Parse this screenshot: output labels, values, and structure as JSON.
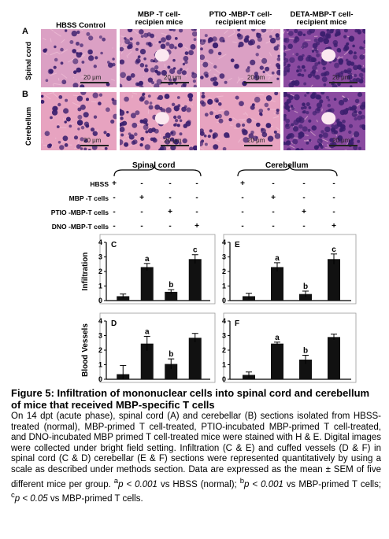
{
  "figure": {
    "column_headers": [
      "HBSS Control",
      "MBP -T cell-\nrecipien mice",
      "PTIO -MBP-T cell-\nrecipient mice",
      "DETA-MBP-T cell-\nrecipient mice"
    ],
    "rows": [
      {
        "letter": "A",
        "label": "Spinal cord"
      },
      {
        "letter": "B",
        "label": "Cerebellum"
      }
    ],
    "scale_labels": [
      "20 μm",
      "20 μm",
      "20 μm",
      "20 μm",
      "20 μm",
      "20 μm",
      "20 μm",
      "20 μm"
    ],
    "colors": {
      "tissue_light": "#e9a6c2",
      "tissue_dark": "#7a3f97",
      "nucleus": "#3b1f6e",
      "bar": "#111111"
    }
  },
  "treatment_table": {
    "group_labels": [
      "Spinal cord",
      "Cerebellum"
    ],
    "rows": [
      {
        "label": "HBSS",
        "signs": [
          "+",
          "-",
          "-",
          "-",
          "+",
          "-",
          "-",
          "-"
        ]
      },
      {
        "label": "MBP -T cells",
        "signs": [
          "-",
          "+",
          "-",
          "-",
          "-",
          "+",
          "-",
          "-"
        ]
      },
      {
        "label": "PTIO -MBP-T cells",
        "signs": [
          "-",
          "-",
          "+",
          "-",
          "-",
          "-",
          "+",
          "-"
        ]
      },
      {
        "label": "DNO -MBP-T cells",
        "signs": [
          "-",
          "-",
          "-",
          "+",
          "-",
          "-",
          "-",
          "+"
        ]
      }
    ]
  },
  "chart_data": [
    {
      "panel": "C",
      "type": "bar",
      "ylabel": "Infiltration",
      "ylim": [
        0,
        4
      ],
      "yticks": [
        0,
        1,
        2,
        3,
        4
      ],
      "categories": [
        "HBSS",
        "MBP -T cells",
        "PTIO -MBP-T cells",
        "DNO -MBP-T cells"
      ],
      "values": [
        0.3,
        2.3,
        0.6,
        2.85
      ],
      "errors": [
        0.15,
        0.25,
        0.15,
        0.3
      ],
      "annotations": [
        "",
        "a",
        "b",
        "c"
      ]
    },
    {
      "panel": "E",
      "type": "bar",
      "ylabel": "",
      "ylim": [
        0,
        4
      ],
      "yticks": [
        0,
        1,
        2,
        3,
        4
      ],
      "categories": [
        "HBSS",
        "MBP -T cells",
        "PTIO -MBP-T cells",
        "DNO -MBP-T cells"
      ],
      "values": [
        0.3,
        2.3,
        0.45,
        2.85
      ],
      "errors": [
        0.2,
        0.3,
        0.2,
        0.35
      ],
      "annotations": [
        "",
        "a",
        "b",
        "c"
      ]
    },
    {
      "panel": "D",
      "type": "bar",
      "ylabel": "Blood Vessels",
      "ylim": [
        0,
        4
      ],
      "yticks": [
        0,
        1,
        2,
        3,
        4
      ],
      "categories": [
        "HBSS",
        "MBP -T cells",
        "PTIO -MBP-T cells",
        "DNO -MBP-T cells"
      ],
      "values": [
        0.35,
        2.45,
        1.05,
        2.85
      ],
      "errors": [
        0.6,
        0.5,
        0.35,
        0.3
      ],
      "annotations": [
        "",
        "a",
        "b",
        ""
      ]
    },
    {
      "panel": "F",
      "type": "bar",
      "ylabel": "",
      "ylim": [
        0,
        4
      ],
      "yticks": [
        0,
        1,
        2,
        3,
        4
      ],
      "categories": [
        "HBSS",
        "MBP -T cells",
        "PTIO -MBP-T cells",
        "DNO -MBP-T cells"
      ],
      "values": [
        0.3,
        2.45,
        1.35,
        2.9
      ],
      "errors": [
        0.2,
        0.1,
        0.3,
        0.2
      ],
      "annotations": [
        "",
        "a",
        "b",
        ""
      ]
    }
  ],
  "caption": {
    "title": "Figure 5: Infiltration of mononuclear cells into spinal cord and cerebellum of mice that received MBP-specific T cells",
    "body_html": "On 14 dpt (acute phase), spinal cord (A) and cerebellar (B) sections isolated from HBSS-treated (normal), MBP-primed T cell-treated, PTIO-incubated MBP-primed T cell-treated, and  DNO-incubated MBP primed T cell-treated mice were stained with H &amp; E. Digital images were collected under bright field setting. Infiltration (C &amp; E) and cuffed vessels (D &amp; F) in spinal cord (C &amp; D) cerebellar (E &amp; F) sections were represented quantitatively by using a scale as described under methods section. Data are expressed as the mean ± SEM of five different mice per group. <sup>a</sup><i>p &lt; 0.001</i> vs HBSS (normal); <sup>b</sup><i>p &lt; 0.001</i> vs MBP-primed T cells; <sup>c</sup><i>p &lt; 0.05</i> vs MBP-primed T cells."
  }
}
